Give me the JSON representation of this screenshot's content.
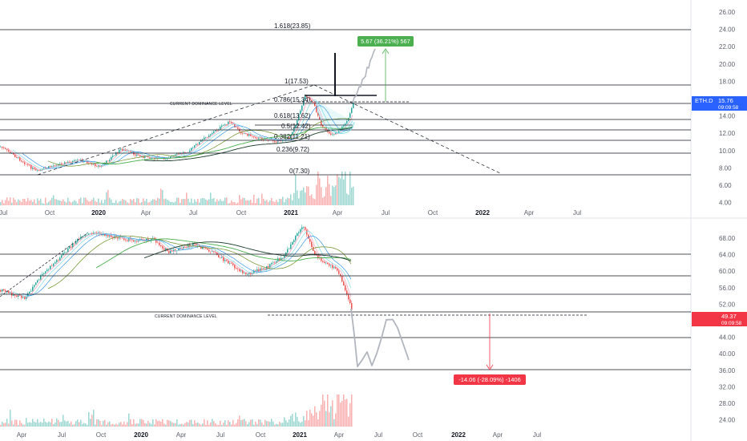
{
  "colors": {
    "up": "#26a69a",
    "down": "#ef5350",
    "ma_green": "#4caf50",
    "ma_dark": "#1b3a2a",
    "ma_olive": "#6b8e23",
    "ma_cyan": "#80deea",
    "ma_blue": "#1e88e5",
    "ma_pink": "#f48fb1",
    "gain_green": "#4caf50",
    "loss_red": "#f23645",
    "line_dark": "#131722",
    "projection_gray": "#b2b5be",
    "price_tag_blue": "#2962ff"
  },
  "top_panel": {
    "symbol_tag": "ETH.D",
    "last_price": "15.76",
    "countdown": "09:09:58",
    "price_axis": [
      "26.00",
      "24.00",
      "22.00",
      "20.00",
      "18.00",
      "16.00",
      "14.00",
      "12.00",
      "10.00",
      "8.00",
      "6.00",
      "4.00"
    ],
    "time_axis": [
      {
        "label": "Jul",
        "bold": false
      },
      {
        "label": "Oct",
        "bold": false
      },
      {
        "label": "2020",
        "bold": true
      },
      {
        "label": "Apr",
        "bold": false
      },
      {
        "label": "Jul",
        "bold": false
      },
      {
        "label": "Oct",
        "bold": false
      },
      {
        "label": "2021",
        "bold": true
      },
      {
        "label": "Apr",
        "bold": false
      },
      {
        "label": "Jul",
        "bold": false
      },
      {
        "label": "Oct",
        "bold": false
      },
      {
        "label": "2022",
        "bold": true
      },
      {
        "label": "Apr",
        "bold": false
      },
      {
        "label": "Jul",
        "bold": false
      }
    ],
    "fib_labels": [
      "1.618(23.85)",
      "1(17.53)",
      "0.786(15.34)",
      "0.618(13.62)",
      "0.5(12.42)",
      "0.382(11.21)",
      "0.236(9.72)",
      "0(7.30)"
    ],
    "dominance_label": "CURRENT DOMINANCE LEVEL",
    "measure_label": "5.67 (36.21%) 567"
  },
  "bottom_panel": {
    "last_price": "49.37",
    "countdown": "09:09:58",
    "price_axis": [
      "68.00",
      "64.00",
      "60.00",
      "56.00",
      "52.00",
      "48.00",
      "44.00",
      "40.00",
      "36.00",
      "32.00",
      "28.00",
      "24.00"
    ],
    "time_axis": [
      {
        "label": "Apr",
        "bold": false
      },
      {
        "label": "Jul",
        "bold": false
      },
      {
        "label": "Oct",
        "bold": false
      },
      {
        "label": "2020",
        "bold": true
      },
      {
        "label": "Apr",
        "bold": false
      },
      {
        "label": "Jul",
        "bold": false
      },
      {
        "label": "Oct",
        "bold": false
      },
      {
        "label": "2021",
        "bold": true
      },
      {
        "label": "Apr",
        "bold": false
      },
      {
        "label": "Jul",
        "bold": false
      },
      {
        "label": "Oct",
        "bold": false
      },
      {
        "label": "2022",
        "bold": true
      },
      {
        "label": "Apr",
        "bold": false
      },
      {
        "label": "Jul",
        "bold": false
      }
    ],
    "dominance_label": "CURRENT DOMINANCE LEVEL",
    "measure_label": "-14.06 (-28.09%) -1406"
  }
}
